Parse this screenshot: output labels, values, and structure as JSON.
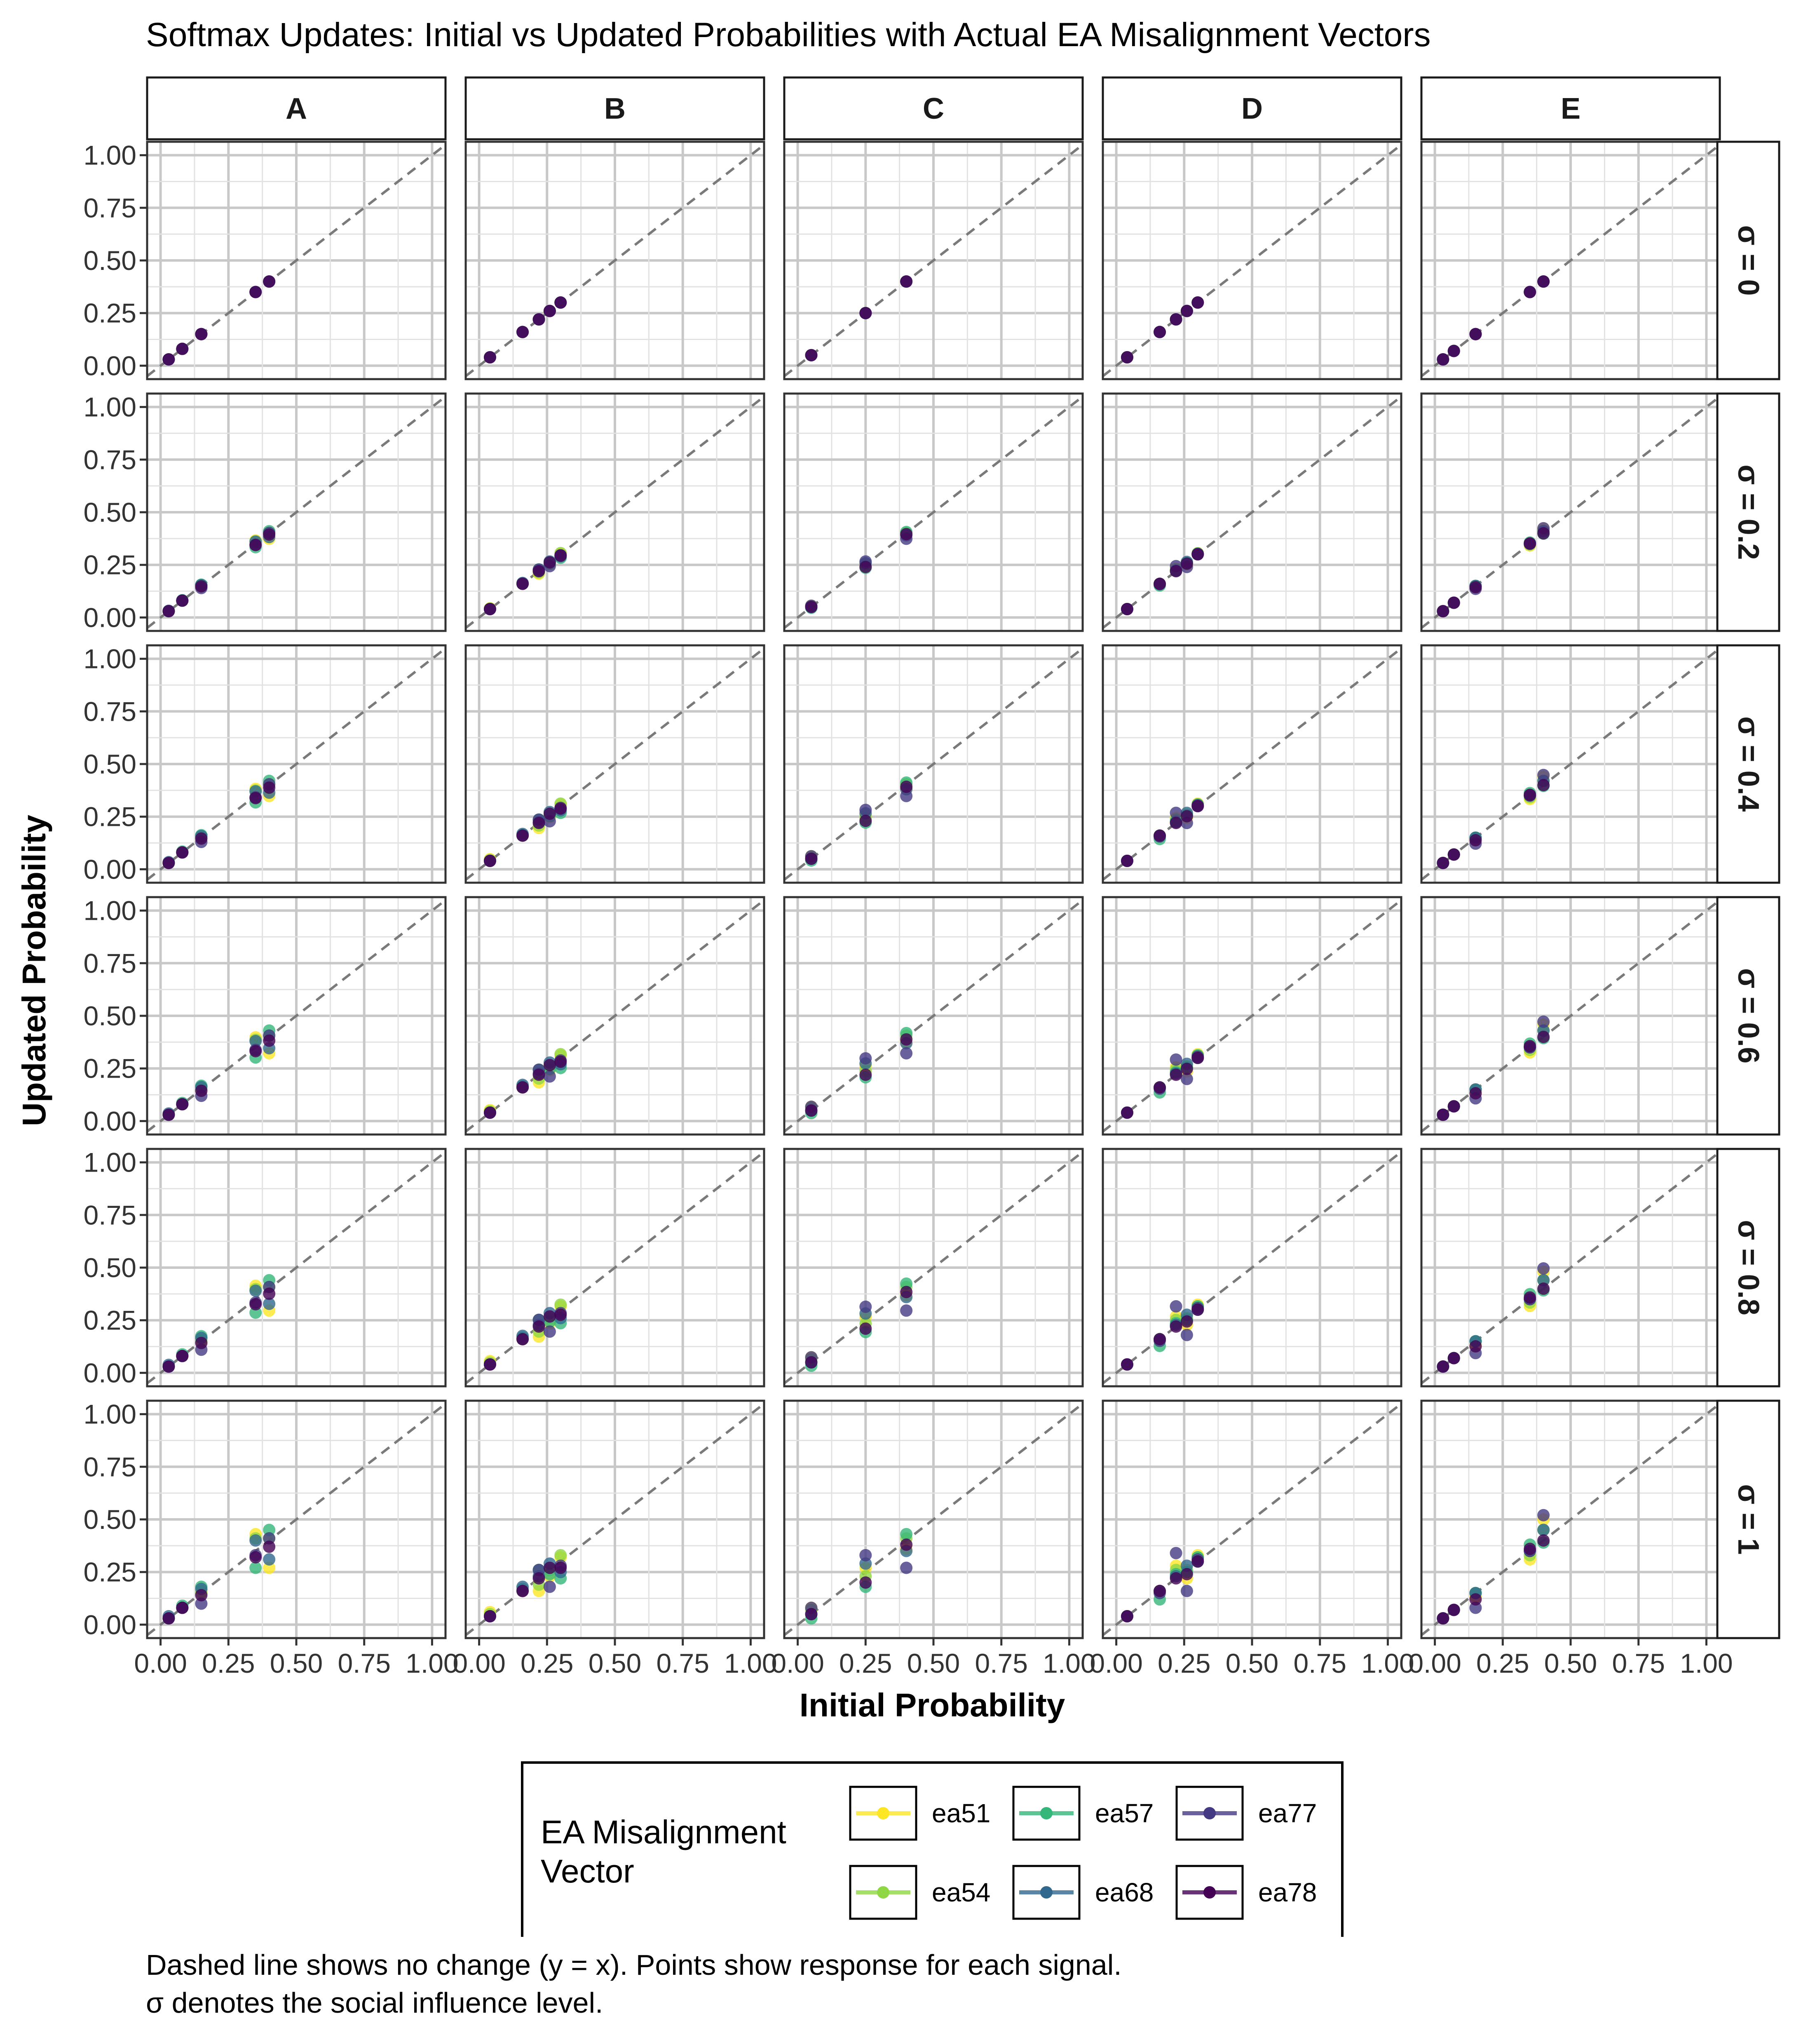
{
  "chart_data": {
    "type": "scatter",
    "title": "Softmax Updates: Initial vs Updated Probabilities with Actual EA Misalignment Vectors",
    "xlabel": "Initial Probability",
    "ylabel": "Updated Probability",
    "xlim": [
      0,
      1
    ],
    "ylim": [
      0,
      1
    ],
    "x_ticks": [
      "0.00",
      "0.25",
      "0.50",
      "0.75",
      "1.00"
    ],
    "y_ticks": [
      "0.00",
      "0.25",
      "0.50",
      "0.75",
      "1.00"
    ],
    "grid": true,
    "reference_line": "y = x (dashed)",
    "columns": [
      "A",
      "B",
      "C",
      "D",
      "E"
    ],
    "rows": [
      "σ = 0",
      "σ = 0.2",
      "σ = 0.4",
      "σ = 0.6",
      "σ = 0.8",
      "σ = 1"
    ],
    "sigma_levels": [
      0,
      0.2,
      0.4,
      0.6,
      0.8,
      1
    ],
    "legend": {
      "title_lines": [
        "EA Misalignment",
        "Vector"
      ],
      "placement": "bottom",
      "entries": [
        {
          "name": "ea51",
          "color": "#FDE725"
        },
        {
          "name": "ea54",
          "color": "#8FD744"
        },
        {
          "name": "ea57",
          "color": "#35B779"
        },
        {
          "name": "ea68",
          "color": "#31688E"
        },
        {
          "name": "ea77",
          "color": "#443A83"
        },
        {
          "name": "ea78",
          "color": "#440154"
        }
      ]
    },
    "initial_probabilities": {
      "A": [
        0.03,
        0.08,
        0.15,
        0.35,
        0.4
      ],
      "B": [
        0.04,
        0.16,
        0.22,
        0.26,
        0.3
      ],
      "C": [
        0.05,
        0.25,
        0.4
      ],
      "D": [
        0.04,
        0.16,
        0.22,
        0.26,
        0.3
      ],
      "E": [
        0.03,
        0.07,
        0.15,
        0.35,
        0.4
      ]
    },
    "deviation_per_unit_sigma": {
      "A": {
        "ea51": [
          0.0,
          0.0,
          0.01,
          0.08,
          -0.13
        ],
        "ea54": [
          0.0,
          0.0,
          0.0,
          0.06,
          0.01
        ],
        "ea57": [
          0.0,
          0.01,
          0.03,
          -0.08,
          0.05
        ],
        "ea68": [
          0.01,
          0.0,
          0.02,
          0.05,
          -0.09
        ],
        "ea77": [
          0.0,
          0.0,
          -0.05,
          -0.02,
          0.01
        ],
        "ea78": [
          0.0,
          0.0,
          -0.01,
          -0.03,
          -0.03
        ]
      },
      "B": {
        "ea51": [
          0.02,
          0.0,
          -0.06,
          -0.03,
          0.02
        ],
        "ea54": [
          0.01,
          0.0,
          -0.03,
          0.0,
          0.03
        ],
        "ea57": [
          0.0,
          0.01,
          0.04,
          -0.02,
          -0.08
        ],
        "ea68": [
          0.0,
          0.02,
          0.01,
          0.03,
          -0.05
        ],
        "ea77": [
          0.0,
          0.0,
          0.04,
          -0.08,
          -0.02
        ],
        "ea78": [
          0.0,
          0.0,
          0.0,
          0.01,
          -0.03
        ]
      },
      "C": {
        "ea51": [
          0.03,
          0.02,
          -0.04
        ],
        "ea54": [
          0.02,
          -0.02,
          0.01
        ],
        "ea57": [
          -0.02,
          -0.07,
          0.03
        ],
        "ea68": [
          0.0,
          0.04,
          -0.05
        ],
        "ea77": [
          0.03,
          0.08,
          -0.13
        ],
        "ea78": [
          0.0,
          -0.05,
          -0.02
        ]
      },
      "D": {
        "ea51": [
          0.0,
          0.0,
          0.06,
          -0.04,
          0.03
        ],
        "ea54": [
          0.0,
          0.0,
          0.04,
          0.0,
          0.02
        ],
        "ea57": [
          0.0,
          -0.04,
          0.02,
          -0.01,
          0.02
        ],
        "ea68": [
          0.0,
          0.0,
          0.01,
          0.02,
          0.0
        ],
        "ea77": [
          0.0,
          -0.01,
          0.12,
          -0.1,
          0.01
        ],
        "ea78": [
          0.0,
          0.0,
          0.0,
          -0.02,
          0.0
        ]
      },
      "E": {
        "ea51": [
          0.0,
          0.0,
          -0.02,
          -0.04,
          0.1
        ],
        "ea54": [
          0.0,
          0.0,
          0.0,
          -0.02,
          0.05
        ],
        "ea57": [
          0.0,
          0.0,
          0.0,
          0.03,
          -0.01
        ],
        "ea68": [
          0.0,
          0.0,
          0.0,
          0.0,
          0.05
        ],
        "ea77": [
          0.0,
          0.0,
          -0.07,
          0.0,
          0.12
        ],
        "ea78": [
          0.0,
          0.0,
          -0.03,
          0.01,
          0.0
        ]
      }
    }
  },
  "caption_lines": [
    "Dashed line shows no change (y = x). Points show response for each signal.",
    "σ denotes the social influence level."
  ]
}
